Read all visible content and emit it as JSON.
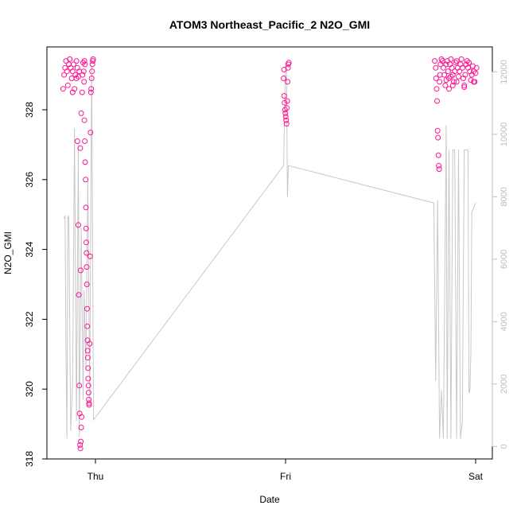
{
  "chart_data": {
    "type": "scatter",
    "title": "ATOM3 Northeast_Pacific_2 N2O_GMI",
    "xlabel": "Date",
    "ylabel": "N2O_GMI",
    "x_ticks": [
      "Thu",
      "Fri",
      "Sat"
    ],
    "y_ticks": [
      318,
      320,
      322,
      324,
      326,
      328
    ],
    "ylim": [
      318,
      329.8
    ],
    "y2_ticks": [
      0,
      2000,
      4000,
      6000,
      8000,
      10000,
      12000
    ],
    "y2lim": [
      -400,
      12800
    ],
    "grid": false,
    "legend": "none",
    "colors": {
      "points": "#ff1493",
      "altitude_line": "#c8c8c8",
      "axis": "#000000",
      "right_axis": "#bdbdbd"
    },
    "series": [
      {
        "kind": "points",
        "points": [
          [
            -0.17,
            328.6
          ],
          [
            -0.165,
            329.0
          ],
          [
            -0.16,
            329.2
          ],
          [
            -0.155,
            329.4
          ],
          [
            -0.15,
            329.1
          ],
          [
            -0.145,
            328.7
          ],
          [
            -0.14,
            329.3
          ],
          [
            -0.135,
            329.45
          ],
          [
            -0.13,
            329.2
          ],
          [
            -0.125,
            328.9
          ],
          [
            -0.12,
            329.1
          ],
          [
            -0.115,
            329.3
          ],
          [
            -0.11,
            328.6
          ],
          [
            -0.105,
            329.0
          ],
          [
            -0.1,
            329.4
          ],
          [
            -0.095,
            329.2
          ],
          [
            -0.09,
            328.95
          ],
          [
            -0.085,
            329.1
          ],
          [
            -0.12,
            328.5
          ],
          [
            -0.1,
            328.9
          ],
          [
            -0.095,
            327.1
          ],
          [
            -0.09,
            324.7
          ],
          [
            -0.088,
            322.7
          ],
          [
            -0.085,
            320.1
          ],
          [
            -0.083,
            319.3
          ],
          [
            -0.081,
            318.4
          ],
          [
            -0.079,
            318.3
          ],
          [
            -0.077,
            318.5
          ],
          [
            -0.075,
            318.9
          ],
          [
            -0.073,
            319.2
          ],
          [
            -0.078,
            323.4
          ],
          [
            -0.08,
            326.9
          ],
          [
            -0.075,
            327.9
          ],
          [
            -0.07,
            328.5
          ],
          [
            -0.068,
            329.0
          ],
          [
            -0.065,
            329.35
          ],
          [
            -0.062,
            329.1
          ],
          [
            -0.06,
            328.8
          ],
          [
            -0.058,
            327.7
          ],
          [
            -0.056,
            327.1
          ],
          [
            -0.054,
            326.5
          ],
          [
            -0.052,
            326.0
          ],
          [
            -0.05,
            325.2
          ],
          [
            -0.049,
            324.6
          ],
          [
            -0.048,
            324.2
          ],
          [
            -0.047,
            323.9
          ],
          [
            -0.046,
            323.5
          ],
          [
            -0.045,
            323.0
          ],
          [
            -0.044,
            322.3
          ],
          [
            -0.043,
            321.8
          ],
          [
            -0.042,
            321.4
          ],
          [
            -0.041,
            321.1
          ],
          [
            -0.04,
            320.9
          ],
          [
            -0.039,
            320.6
          ],
          [
            -0.038,
            320.3
          ],
          [
            -0.037,
            320.1
          ],
          [
            -0.036,
            319.9
          ],
          [
            -0.035,
            319.7
          ],
          [
            -0.034,
            319.6
          ],
          [
            -0.033,
            319.55
          ],
          [
            -0.03,
            321.3
          ],
          [
            -0.028,
            323.8
          ],
          [
            -0.026,
            327.35
          ],
          [
            -0.024,
            328.5
          ],
          [
            -0.022,
            328.6
          ],
          [
            -0.02,
            328.9
          ],
          [
            -0.018,
            329.1
          ],
          [
            -0.016,
            329.3
          ],
          [
            -0.014,
            329.4
          ],
          [
            -0.012,
            329.45
          ],
          [
            -0.055,
            329.3
          ],
          [
            -0.058,
            329.4
          ],
          [
            0.99,
            328.9
          ],
          [
            0.992,
            329.15
          ],
          [
            0.993,
            328.4
          ],
          [
            0.995,
            328.2
          ],
          [
            0.997,
            328.0
          ],
          [
            0.999,
            327.9
          ],
          [
            1.001,
            327.8
          ],
          [
            1.003,
            327.7
          ],
          [
            1.005,
            327.6
          ],
          [
            1.007,
            328.05
          ],
          [
            1.009,
            328.25
          ],
          [
            1.011,
            328.8
          ],
          [
            1.013,
            329.2
          ],
          [
            1.015,
            329.3
          ],
          [
            1.017,
            329.35
          ],
          [
            1.785,
            329.4
          ],
          [
            1.79,
            329.2
          ],
          [
            1.792,
            328.9
          ],
          [
            1.795,
            328.6
          ],
          [
            1.797,
            328.25
          ],
          [
            1.8,
            327.4
          ],
          [
            1.802,
            327.2
          ],
          [
            1.804,
            326.7
          ],
          [
            1.806,
            326.4
          ],
          [
            1.808,
            326.3
          ],
          [
            1.81,
            328.8
          ],
          [
            1.812,
            329.0
          ],
          [
            1.815,
            329.3
          ],
          [
            1.82,
            329.45
          ],
          [
            1.825,
            329.4
          ],
          [
            1.83,
            329.2
          ],
          [
            1.835,
            329.0
          ],
          [
            1.84,
            328.7
          ],
          [
            1.845,
            329.3
          ],
          [
            1.85,
            329.4
          ],
          [
            1.855,
            329.1
          ],
          [
            1.86,
            328.9
          ],
          [
            1.865,
            329.3
          ],
          [
            1.87,
            329.45
          ],
          [
            1.875,
            329.2
          ],
          [
            1.88,
            329.0
          ],
          [
            1.885,
            328.8
          ],
          [
            1.89,
            329.1
          ],
          [
            1.895,
            329.35
          ],
          [
            1.9,
            329.4
          ],
          [
            1.905,
            329.2
          ],
          [
            1.91,
            328.95
          ],
          [
            1.915,
            329.1
          ],
          [
            1.92,
            329.3
          ],
          [
            1.925,
            329.45
          ],
          [
            1.93,
            329.2
          ],
          [
            1.935,
            328.9
          ],
          [
            1.94,
            328.7
          ],
          [
            1.945,
            329.0
          ],
          [
            1.95,
            329.3
          ],
          [
            1.955,
            329.4
          ],
          [
            1.96,
            329.2
          ],
          [
            1.965,
            329.35
          ],
          [
            1.97,
            329.1
          ],
          [
            1.975,
            328.85
          ],
          [
            1.98,
            329.0
          ],
          [
            1.985,
            329.25
          ],
          [
            1.99,
            329.1
          ],
          [
            1.995,
            328.8
          ],
          [
            2.0,
            329.05
          ],
          [
            2.005,
            329.2
          ],
          [
            1.86,
            328.6
          ],
          [
            1.88,
            328.7
          ],
          [
            1.9,
            328.8
          ],
          [
            1.94,
            328.65
          ],
          [
            1.99,
            328.8
          ],
          [
            1.845,
            328.85
          ],
          [
            1.87,
            328.95
          ]
        ]
      },
      {
        "kind": "altitude_line",
        "points": [
          [
            -0.165,
            7300
          ],
          [
            -0.16,
            7400
          ],
          [
            -0.155,
            3000
          ],
          [
            -0.15,
            250
          ],
          [
            -0.145,
            7400
          ],
          [
            -0.14,
            7300
          ],
          [
            -0.13,
            500
          ],
          [
            -0.12,
            2000
          ],
          [
            -0.11,
            10200
          ],
          [
            -0.1,
            800
          ],
          [
            -0.09,
            9700
          ],
          [
            -0.085,
            300
          ],
          [
            -0.075,
            7000
          ],
          [
            -0.065,
            1500
          ],
          [
            -0.06,
            5000
          ],
          [
            -0.05,
            2500
          ],
          [
            -0.04,
            8500
          ],
          [
            -0.03,
            1500
          ],
          [
            -0.02,
            12200
          ],
          [
            -0.01,
            850
          ],
          [
            0.99,
            9000
          ],
          [
            1.0,
            12300
          ],
          [
            1.005,
            12100
          ],
          [
            1.01,
            8000
          ],
          [
            1.015,
            9000
          ],
          [
            1.78,
            7800
          ],
          [
            1.79,
            2100
          ],
          [
            1.8,
            7900
          ],
          [
            1.81,
            250
          ],
          [
            1.82,
            1800
          ],
          [
            1.83,
            250
          ],
          [
            1.845,
            10300
          ],
          [
            1.85,
            250
          ],
          [
            1.86,
            9500
          ],
          [
            1.87,
            250
          ],
          [
            1.88,
            9500
          ],
          [
            1.89,
            9500
          ],
          [
            1.9,
            250
          ],
          [
            1.91,
            9500
          ],
          [
            1.92,
            250
          ],
          [
            1.93,
            800
          ],
          [
            1.94,
            9500
          ],
          [
            1.96,
            9500
          ],
          [
            1.965,
            1700
          ],
          [
            1.97,
            1800
          ],
          [
            1.975,
            3000
          ],
          [
            1.98,
            7500
          ],
          [
            2.0,
            7800
          ]
        ]
      }
    ]
  }
}
